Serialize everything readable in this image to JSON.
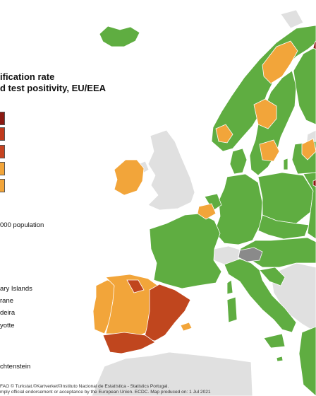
{
  "title_line1": "ification rate",
  "title_line2": "d test positivity, EU/EEA",
  "legend": {
    "colors": [
      "#8b1a12",
      "#c0391c",
      "#c54321",
      "#f2a53a",
      "#f2a53a"
    ],
    "population_label": "000 population",
    "regions": [
      "ary Islands",
      "rane",
      "deira",
      "yotte",
      "chtenstein"
    ]
  },
  "palette": {
    "green": "#5fad41",
    "orange": "#f2a53a",
    "red": "#c0461e",
    "darkred": "#8b1a12",
    "grey": "#e0e0e0",
    "darkgrey": "#8a8a8a",
    "border": "#ffffff"
  },
  "attribution_line1": "FAO © Turkstat.©Kartverket©Instituto Nacional de Estatística - Statistics Portugal.",
  "attribution_line2": "mply official endorsement or acceptance by the European Union. ECDC. Map produced on: 1 Jul 2021"
}
